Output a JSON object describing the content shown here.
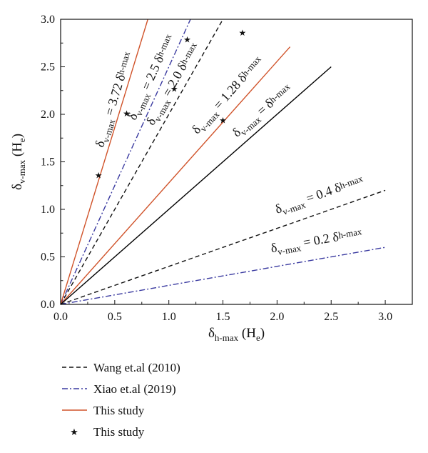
{
  "chart_data": {
    "type": "line",
    "xlim": [
      0.0,
      3.25
    ],
    "ylim": [
      0.0,
      3.0
    ],
    "x_ticks": [
      "0.0",
      "0.5",
      "1.0",
      "1.5",
      "2.0",
      "2.5",
      "3.0"
    ],
    "y_ticks": [
      "0.0",
      "0.5",
      "1.0",
      "1.5",
      "2.0",
      "2.5",
      "3.0"
    ],
    "xlabel": {
      "main": "δ",
      "sub": "h-max",
      "unit": " (H",
      "unit_sub": "e",
      "close": ")"
    },
    "ylabel": {
      "main": "δ",
      "sub": "v-max",
      "unit": " (H",
      "unit_sub": "e",
      "close": ")"
    },
    "grid": false,
    "legend_position": "below plot",
    "colors": {
      "wang": "#111111",
      "xiao": "#3a3aa0",
      "this_study": "#d0532a",
      "solid": "#000000",
      "points": "#111111"
    },
    "series": [
      {
        "legend": "Wang et.al (2010)",
        "style": "dashed",
        "color": "#111111",
        "lines": [
          {
            "slope": 2.0,
            "x": [
              0,
              1.5
            ],
            "y": [
              0,
              3.0
            ]
          },
          {
            "slope": 0.4,
            "x": [
              0,
              3.0
            ],
            "y": [
              0,
              1.2
            ]
          }
        ]
      },
      {
        "legend": "Xiao et.al (2019)",
        "style": "dashdot",
        "color": "#3a3aa0",
        "lines": [
          {
            "slope": 2.5,
            "x": [
              0,
              1.2
            ],
            "y": [
              0,
              3.0
            ]
          },
          {
            "slope": 0.2,
            "x": [
              0,
              3.0
            ],
            "y": [
              0,
              0.6
            ]
          }
        ]
      },
      {
        "legend": "This study",
        "style": "solid",
        "color": "#d0532a",
        "lines": [
          {
            "slope": 3.72,
            "x": [
              0,
              0.806
            ],
            "y": [
              0,
              3.0
            ]
          },
          {
            "slope": 1.28,
            "x": [
              0,
              2.12
            ],
            "y": [
              0,
              2.71
            ]
          }
        ]
      },
      {
        "legend": "",
        "style": "solid",
        "color": "#000000",
        "lines": [
          {
            "slope": 1.0,
            "x": [
              0,
              2.5
            ],
            "y": [
              0,
              2.5
            ]
          }
        ]
      },
      {
        "legend": "This study",
        "style": "markers",
        "marker": "star",
        "color": "#111111",
        "points": [
          {
            "x": 0.35,
            "y": 1.36
          },
          {
            "x": 0.61,
            "y": 2.01
          },
          {
            "x": 1.05,
            "y": 2.27
          },
          {
            "x": 1.17,
            "y": 2.79
          },
          {
            "x": 1.5,
            "y": 1.94
          },
          {
            "x": 1.68,
            "y": 2.86
          }
        ]
      }
    ],
    "annotations": [
      {
        "prefix": "δ",
        "sub1": "v-max",
        "mid": " = 3.72 δ",
        "sub2": "h-max",
        "slope": 3.72
      },
      {
        "prefix": "δ",
        "sub1": "v-max",
        "mid": " = 2.5 δ",
        "sub2": "h-max",
        "slope": 2.5
      },
      {
        "prefix": "δ",
        "sub1": "v-max",
        "mid": " = 2.0 δ",
        "sub2": "h-max",
        "slope": 2.0
      },
      {
        "prefix": "δ",
        "sub1": "v-max",
        "mid": " = 1.28 δ",
        "sub2": "h-max",
        "slope": 1.28
      },
      {
        "prefix": "δ",
        "sub1": "v-max",
        "mid": " = δ",
        "sub2": "h-max",
        "slope": 1.0
      },
      {
        "prefix": "δ",
        "sub1": "v-max",
        "mid": " = 0.4 δ",
        "sub2": "h-max",
        "slope": 0.4
      },
      {
        "prefix": "δ",
        "sub1": "v-max",
        "mid": " = 0.2 δ",
        "sub2": "h-max",
        "slope": 0.2
      }
    ]
  }
}
